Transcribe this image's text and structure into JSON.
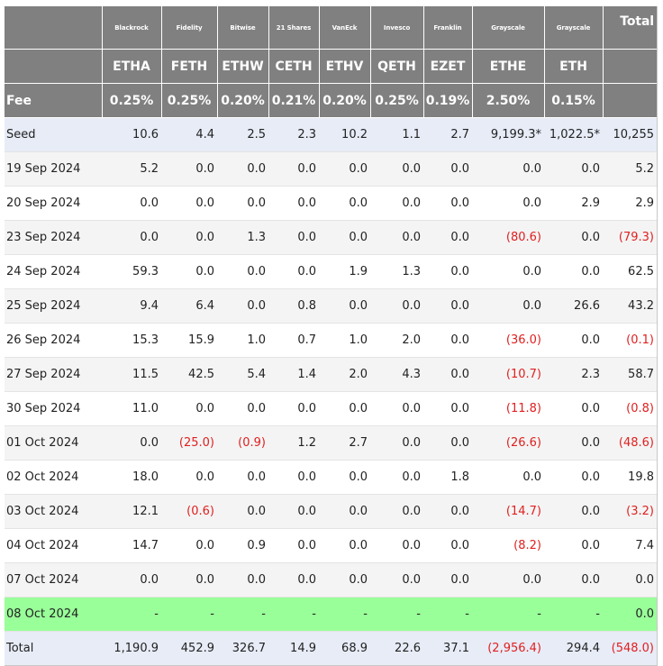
{
  "table": {
    "issuers": [
      "Blackrock",
      "Fidelity",
      "Bitwise",
      "21 Shares",
      "VanEck",
      "Invesco",
      "Franklin",
      "Grayscale",
      "Grayscale"
    ],
    "total_header": "Total",
    "tickers": [
      "ETHA",
      "FETH",
      "ETHW",
      "CETH",
      "ETHV",
      "QETH",
      "EZET",
      "ETHE",
      "ETH"
    ],
    "fee_label": "Fee",
    "fees": [
      "0.25%",
      "0.25%",
      "0.20%",
      "0.21%",
      "0.20%",
      "0.25%",
      "0.19%",
      "2.50%",
      "0.15%"
    ],
    "rows": [
      {
        "label": "Seed",
        "values": [
          "10.6",
          "4.4",
          "2.5",
          "2.3",
          "10.2",
          "1.1",
          "2.7",
          "9,199.3*",
          "1,022.5*",
          "10,255"
        ]
      },
      {
        "label": "19 Sep 2024",
        "values": [
          "5.2",
          "0.0",
          "0.0",
          "0.0",
          "0.0",
          "0.0",
          "0.0",
          "0.0",
          "0.0",
          "5.2"
        ]
      },
      {
        "label": "20 Sep 2024",
        "values": [
          "0.0",
          "0.0",
          "0.0",
          "0.0",
          "0.0",
          "0.0",
          "0.0",
          "0.0",
          "2.9",
          "2.9"
        ]
      },
      {
        "label": "23 Sep 2024",
        "values": [
          "0.0",
          "0.0",
          "1.3",
          "0.0",
          "0.0",
          "0.0",
          "0.0",
          "(80.6)",
          "0.0",
          "(79.3)"
        ]
      },
      {
        "label": "24 Sep 2024",
        "values": [
          "59.3",
          "0.0",
          "0.0",
          "0.0",
          "1.9",
          "1.3",
          "0.0",
          "0.0",
          "0.0",
          "62.5"
        ]
      },
      {
        "label": "25 Sep 2024",
        "values": [
          "9.4",
          "6.4",
          "0.0",
          "0.8",
          "0.0",
          "0.0",
          "0.0",
          "0.0",
          "26.6",
          "43.2"
        ]
      },
      {
        "label": "26 Sep 2024",
        "values": [
          "15.3",
          "15.9",
          "1.0",
          "0.7",
          "1.0",
          "2.0",
          "0.0",
          "(36.0)",
          "0.0",
          "(0.1)"
        ]
      },
      {
        "label": "27 Sep 2024",
        "values": [
          "11.5",
          "42.5",
          "5.4",
          "1.4",
          "2.0",
          "4.3",
          "0.0",
          "(10.7)",
          "2.3",
          "58.7"
        ]
      },
      {
        "label": "30 Sep 2024",
        "values": [
          "11.0",
          "0.0",
          "0.0",
          "0.0",
          "0.0",
          "0.0",
          "0.0",
          "(11.8)",
          "0.0",
          "(0.8)"
        ]
      },
      {
        "label": "01 Oct 2024",
        "values": [
          "0.0",
          "(25.0)",
          "(0.9)",
          "1.2",
          "2.7",
          "0.0",
          "0.0",
          "(26.6)",
          "0.0",
          "(48.6)"
        ]
      },
      {
        "label": "02 Oct 2024",
        "values": [
          "18.0",
          "0.0",
          "0.0",
          "0.0",
          "0.0",
          "0.0",
          "1.8",
          "0.0",
          "0.0",
          "19.8"
        ]
      },
      {
        "label": "03 Oct 2024",
        "values": [
          "12.1",
          "(0.6)",
          "0.0",
          "0.0",
          "0.0",
          "0.0",
          "0.0",
          "(14.7)",
          "0.0",
          "(3.2)"
        ]
      },
      {
        "label": "04 Oct 2024",
        "values": [
          "14.7",
          "0.0",
          "0.9",
          "0.0",
          "0.0",
          "0.0",
          "0.0",
          "(8.2)",
          "0.0",
          "7.4"
        ]
      },
      {
        "label": "07 Oct 2024",
        "values": [
          "0.0",
          "0.0",
          "0.0",
          "0.0",
          "0.0",
          "0.0",
          "0.0",
          "0.0",
          "0.0",
          "0.0"
        ]
      },
      {
        "label": "08 Oct 2024",
        "values": [
          "-",
          "-",
          "-",
          "-",
          "-",
          "-",
          "-",
          "-",
          "-",
          "0.0"
        ]
      },
      {
        "label": "Total",
        "values": [
          "1,190.9",
          "452.9",
          "326.7",
          "14.9",
          "68.9",
          "22.6",
          "37.1",
          "(2,956.4)",
          "294.4",
          "(548.0)"
        ]
      }
    ]
  },
  "colors": {
    "header_bg": "#808080",
    "negative": "#e02020",
    "seed_row_bg": "#e7ecf7",
    "highlight_row_bg": "#99ff99"
  }
}
